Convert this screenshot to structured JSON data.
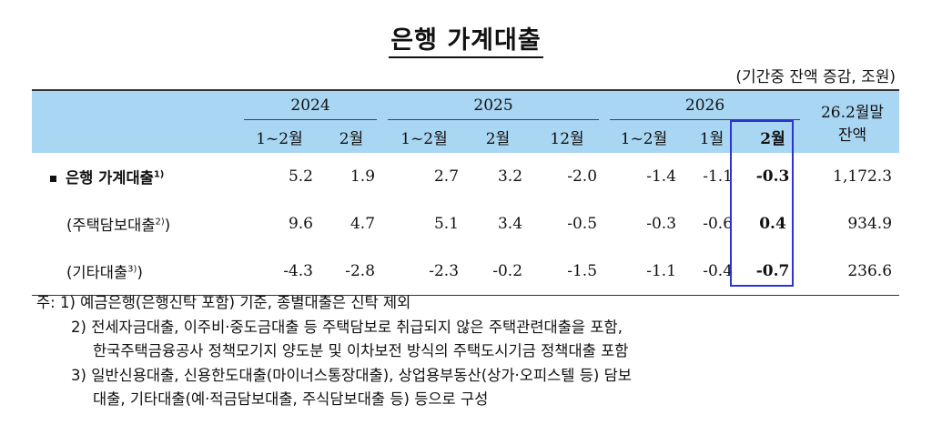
{
  "title": "은행 가계대출",
  "unit": "(기간중 잔액 증감, 조원)",
  "header": {
    "years": [
      "2024",
      "2025",
      "2026"
    ],
    "balance_header_line1": "26.2월말",
    "balance_header_line2": "잔액",
    "periods": [
      "1~2월",
      "2월",
      "1~2월",
      "2월",
      "12월",
      "1~2월",
      "1월",
      "2월"
    ]
  },
  "rows": [
    {
      "label": "은행 가계대출",
      "note": "1)",
      "values": [
        "5.2",
        "1.9",
        "2.7",
        "3.2",
        "-2.0",
        "-1.4",
        "-1.1",
        "-0.3",
        "1,172.3"
      ]
    },
    {
      "label": "(주택담보대출",
      "note": "2)",
      "close": ")",
      "values": [
        "9.6",
        "4.7",
        "5.1",
        "3.4",
        "-0.5",
        "-0.3",
        "-0.6",
        "0.4",
        "934.9"
      ]
    },
    {
      "label": "(기타대출",
      "note": "3)",
      "close": ")",
      "values": [
        "-4.3",
        "-2.8",
        "-2.3",
        "-0.2",
        "-1.5",
        "-1.1",
        "-0.4",
        "-0.7",
        "236.6"
      ]
    }
  ],
  "notes": {
    "prefix": "주: 1)",
    "n1": "예금은행(은행신탁 포함) 기준, 종별대출은 신탁 제외",
    "n2_num": "2)",
    "n2_a": "전세자금대출, 이주비·중도금대출 등 주택담보로 취급되지 않은 주택관련대출을 포함,",
    "n2_b": "한국주택금융공사 정책모기지 양도분 및 이차보전 방식의 주택도시기금 정책대출 포함",
    "n3_num": "3)",
    "n3_a": "일반신용대출, 신용한도대출(마이너스통장대출), 상업용부동산(상가·오피스텔 등) 담보",
    "n3_b": "대출, 기타대출(예·적금담보대출, 주식담보대출 등) 등으로 구성"
  },
  "colors": {
    "header_bg": "#a9d6f2",
    "highlight_border": "#2d34d6"
  }
}
